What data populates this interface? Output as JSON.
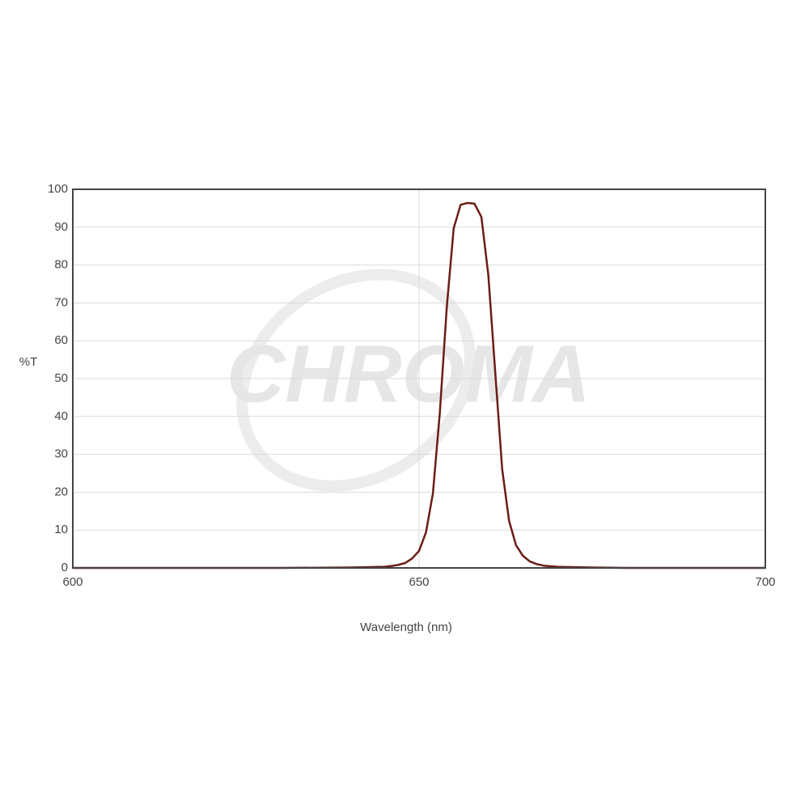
{
  "chart_data": {
    "type": "line",
    "watermark": "CHROMA",
    "xlabel": "Wavelength (nm)",
    "ylabel": "%T",
    "x": [
      600,
      630,
      640,
      645,
      646,
      647,
      648,
      649,
      650,
      651,
      652,
      653,
      654,
      655,
      656,
      657,
      658,
      659,
      660,
      661,
      662,
      663,
      664,
      665,
      666,
      667,
      668,
      670,
      675,
      680,
      700
    ],
    "values": [
      0,
      0,
      0.1,
      0.3,
      0.5,
      0.8,
      1.3,
      2.5,
      4.5,
      9.4,
      19.7,
      41,
      68.8,
      89.7,
      95.9,
      96.4,
      96.2,
      92.7,
      77.4,
      51.7,
      26.1,
      12.4,
      6,
      3.2,
      1.7,
      1,
      0.6,
      0.3,
      0.1,
      0,
      0
    ],
    "color": "#6b1c16",
    "xlim": [
      600,
      700
    ],
    "xticks": [
      600,
      650,
      700
    ],
    "ylim": [
      0,
      100
    ],
    "yticks": [
      0,
      10,
      20,
      30,
      40,
      50,
      60,
      70,
      80,
      90,
      100
    ],
    "grid": true
  }
}
